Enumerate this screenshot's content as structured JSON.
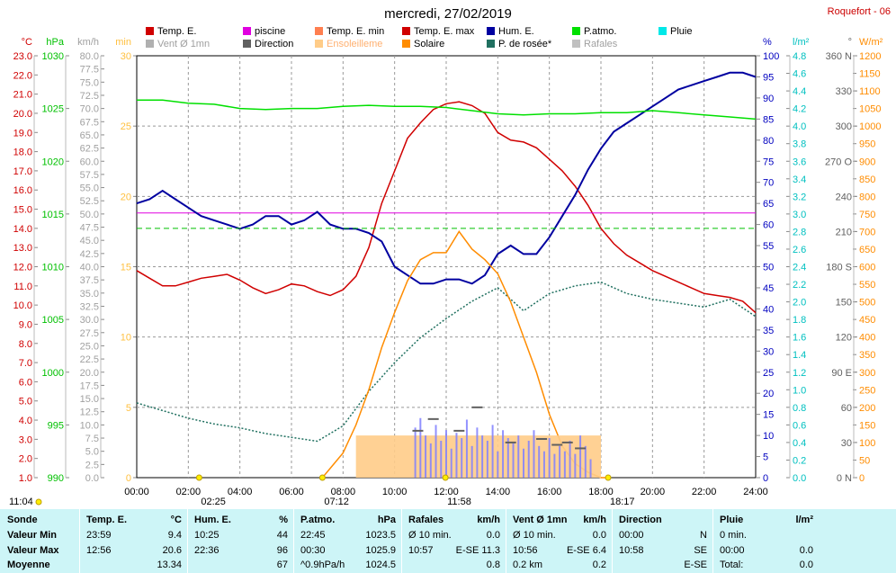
{
  "header": {
    "date_title": "mercredi, 27/02/2019",
    "station": "Roquefort - 06"
  },
  "legend": [
    {
      "label": "Temp. E.",
      "color": "#d00000",
      "text_color": "#000000"
    },
    {
      "label": "piscine",
      "color": "#e000e0",
      "text_color": "#000000"
    },
    {
      "label": "Temp. E. min",
      "color": "#ff7f50",
      "text_color": "#000000"
    },
    {
      "label": "Temp. E. max",
      "color": "#d00000",
      "text_color": "#000000"
    },
    {
      "label": "Hum. E.",
      "color": "#0000a0",
      "text_color": "#000000"
    },
    {
      "label": "P.atmo.",
      "color": "#00e000",
      "text_color": "#000000"
    },
    {
      "label": "Pluie",
      "color": "#00e8e8",
      "text_color": "#000000"
    },
    {
      "label": "Vent Ø 1mn",
      "color": "#b0b0b0",
      "text_color": "#a0a0a0"
    },
    {
      "label": "Direction",
      "color": "#606060",
      "text_color": "#000000"
    },
    {
      "label": "Ensoleilleme",
      "color": "#ffcc88",
      "text_color": "#ffb070"
    },
    {
      "label": "Solaire",
      "color": "#ff8c00",
      "text_color": "#000000"
    },
    {
      "label": "P. de rosée*",
      "color": "#207060",
      "text_color": "#000000"
    },
    {
      "label": "Rafales",
      "color": "#c0c0c0",
      "text_color": "#a0a0a0"
    }
  ],
  "chart_data": {
    "type": "line",
    "x_ticks": [
      "00:00",
      "02:00",
      "04:00",
      "06:00",
      "08:00",
      "10:00",
      "12:00",
      "14:00",
      "16:00",
      "18:00",
      "20:00",
      "22:00",
      "24:00"
    ],
    "axes": {
      "temperature_c": {
        "unit": "°C",
        "color": "#d00000",
        "ticks": [
          "23.0",
          "22.0",
          "21.0",
          "20.0",
          "19.0",
          "18.0",
          "17.0",
          "16.0",
          "15.0",
          "14.0",
          "13.0",
          "12.0",
          "11.0",
          "10.0",
          "9.0",
          "8.0",
          "7.0",
          "6.0",
          "5.0",
          "4.0",
          "3.0",
          "2.0",
          "1.0"
        ],
        "range": [
          1,
          23
        ]
      },
      "pressure_hpa": {
        "unit": "hPa",
        "color": "#00c000",
        "ticks": [
          "1030",
          "1025",
          "1020",
          "1015",
          "1010",
          "1005",
          "1000",
          "995",
          "990"
        ],
        "range": [
          990,
          1030
        ]
      },
      "wind_kmh": {
        "unit": "km/h",
        "color": "#a0a0a0",
        "ticks": [
          "80.0",
          "77.5",
          "75.0",
          "72.5",
          "70.0",
          "67.5",
          "65.0",
          "62.5",
          "60.0",
          "57.5",
          "55.0",
          "52.5",
          "50.0",
          "47.5",
          "45.0",
          "42.5",
          "40.0",
          "37.5",
          "35.0",
          "32.5",
          "30.0",
          "27.5",
          "25.0",
          "22.5",
          "20.0",
          "17.5",
          "15.0",
          "12.5",
          "10.0",
          "7.5",
          "5.0",
          "2.5",
          "0.0"
        ],
        "range": [
          0,
          80
        ]
      },
      "sunshine_min": {
        "unit": "min",
        "color": "#ffc040",
        "ticks": [
          "30",
          "25",
          "20",
          "15",
          "10",
          "5",
          "0"
        ],
        "range": [
          0,
          30
        ]
      },
      "humidity_pct": {
        "unit": "%",
        "color": "#0000c0",
        "ticks": [
          "100",
          "95",
          "90",
          "85",
          "80",
          "75",
          "70",
          "65",
          "60",
          "55",
          "50",
          "45",
          "40",
          "35",
          "30",
          "25",
          "20",
          "15",
          "10",
          "5",
          "0"
        ],
        "range": [
          0,
          100
        ]
      },
      "rain_lm2": {
        "unit": "l/m²",
        "color": "#00c0c0",
        "ticks": [
          "4.8",
          "4.6",
          "4.4",
          "4.2",
          "4.0",
          "3.8",
          "3.6",
          "3.4",
          "3.2",
          "3.0",
          "2.8",
          "2.6",
          "2.4",
          "2.2",
          "2.0",
          "1.8",
          "1.6",
          "1.4",
          "1.2",
          "1.0",
          "0.8",
          "0.6",
          "0.4",
          "0.2",
          "0.0"
        ],
        "range": [
          0,
          5
        ]
      },
      "direction_deg": {
        "unit": "°",
        "color": "#606060",
        "ticks": [
          "360 N",
          "330",
          "300",
          "270 O",
          "240",
          "210",
          "180 S",
          "150",
          "120",
          "90 E",
          "60",
          "30",
          "0 N"
        ],
        "range": [
          0,
          360
        ]
      },
      "solar_wm2": {
        "unit": "W/m²",
        "color": "#ff8c00",
        "ticks": [
          "1200",
          "1150",
          "1100",
          "1050",
          "1000",
          "950",
          "900",
          "850",
          "800",
          "750",
          "700",
          "650",
          "600",
          "550",
          "500",
          "450",
          "400",
          "350",
          "300",
          "250",
          "200",
          "150",
          "100",
          "50",
          "0"
        ],
        "range": [
          0,
          1200
        ]
      }
    },
    "series": [
      {
        "name": "Temp. E.",
        "color": "#d00000",
        "x": [
          0,
          0.5,
          1,
          1.5,
          2,
          2.5,
          3,
          3.5,
          4,
          4.5,
          5,
          5.5,
          6,
          6.5,
          7,
          7.5,
          8,
          8.5,
          9,
          9.5,
          10,
          10.5,
          11,
          11.5,
          12,
          12.5,
          13,
          13.5,
          14,
          14.5,
          15,
          15.5,
          16,
          16.5,
          17,
          17.5,
          18,
          18.5,
          19,
          19.5,
          20,
          20.5,
          21,
          21.5,
          22,
          22.5,
          23,
          23.5,
          24
        ],
        "y": [
          11.8,
          11.4,
          11.0,
          11.0,
          11.2,
          11.4,
          11.5,
          11.6,
          11.3,
          10.9,
          10.6,
          10.8,
          11.1,
          11.0,
          10.7,
          10.5,
          10.8,
          11.5,
          13.0,
          15.3,
          17.0,
          18.7,
          19.5,
          20.2,
          20.5,
          20.6,
          20.4,
          20.0,
          19.0,
          18.6,
          18.5,
          18.2,
          17.6,
          17.0,
          16.2,
          15.2,
          14.0,
          13.2,
          12.6,
          12.2,
          11.8,
          11.5,
          11.2,
          10.9,
          10.6,
          10.5,
          10.4,
          10.2,
          9.6
        ]
      },
      {
        "name": "piscine",
        "color": "#e000e0",
        "x": [
          0,
          24
        ],
        "y": [
          14.8,
          14.8
        ]
      },
      {
        "name": "Hum. E.",
        "color": "#0000a0",
        "x": [
          0,
          0.5,
          1,
          1.5,
          2,
          2.5,
          3,
          3.5,
          4,
          4.5,
          5,
          5.5,
          6,
          6.5,
          7,
          7.5,
          8,
          8.5,
          9,
          9.5,
          10,
          10.5,
          11,
          11.5,
          12,
          12.5,
          13,
          13.5,
          14,
          14.5,
          15,
          15.5,
          16,
          16.5,
          17,
          17.5,
          18,
          18.5,
          19,
          19.5,
          20,
          20.5,
          21,
          21.5,
          22,
          22.5,
          23,
          23.5,
          24
        ],
        "y": [
          65,
          66,
          68,
          66,
          64,
          62,
          61,
          60,
          59,
          60,
          62,
          62,
          60,
          61,
          63,
          60,
          59,
          59,
          58,
          56,
          50,
          48,
          46,
          46,
          47,
          47,
          46,
          48,
          53,
          55,
          53,
          53,
          57,
          62,
          67,
          73,
          78,
          82,
          84,
          86,
          88,
          90,
          92,
          93,
          94,
          95,
          96,
          96,
          95
        ]
      },
      {
        "name": "P.atmo.",
        "color": "#00e000",
        "x": [
          0,
          1,
          2,
          3,
          4,
          5,
          6,
          7,
          8,
          9,
          10,
          11,
          12,
          13,
          14,
          15,
          16,
          17,
          18,
          19,
          20,
          21,
          22,
          23,
          24
        ],
        "y": [
          1025.8,
          1025.8,
          1025.5,
          1025.4,
          1025.0,
          1024.9,
          1025.0,
          1025.0,
          1025.2,
          1025.3,
          1025.2,
          1025.2,
          1025.1,
          1024.8,
          1024.5,
          1024.4,
          1024.5,
          1024.5,
          1024.6,
          1024.6,
          1024.8,
          1024.6,
          1024.4,
          1024.2,
          1024.0
        ]
      },
      {
        "name": "P. de rosée*",
        "color": "#207060",
        "x": [
          0,
          1,
          2,
          3,
          4,
          5,
          6,
          7,
          8,
          9,
          10,
          11,
          12,
          13,
          14,
          15,
          16,
          17,
          18,
          19,
          20,
          21,
          22,
          23,
          24
        ],
        "y": [
          4.9,
          4.5,
          4.1,
          3.8,
          3.6,
          3.3,
          3.1,
          2.9,
          3.7,
          5.5,
          7.0,
          8.3,
          9.3,
          10.2,
          10.9,
          9.7,
          10.6,
          11.0,
          11.2,
          10.6,
          10.3,
          10.1,
          9.9,
          10.3,
          9.4
        ]
      },
      {
        "name": "Solaire",
        "color": "#ff8c00",
        "x": [
          7.2,
          8,
          8.5,
          9,
          9.5,
          10,
          10.5,
          11,
          11.5,
          12,
          12.5,
          13,
          13.5,
          14,
          14.5,
          15,
          15.5,
          16,
          16.5,
          17,
          17.5,
          18,
          18.3
        ],
        "y": [
          0,
          70,
          150,
          250,
          370,
          470,
          560,
          620,
          640,
          640,
          700,
          650,
          620,
          580,
          500,
          400,
          300,
          180,
          90,
          40,
          15,
          0,
          0
        ]
      },
      {
        "name": "Ensoleillement",
        "color": "#ffcc88",
        "x": [
          8.5,
          18.0
        ],
        "y": [
          3,
          3
        ]
      },
      {
        "name": "Rafales",
        "color": "#8080ff",
        "x": [
          10.8,
          11.0,
          11.2,
          11.4,
          11.6,
          11.8,
          12.0,
          12.2,
          12.4,
          12.6,
          12.8,
          13.0,
          13.2,
          13.4,
          13.6,
          13.8,
          14.0,
          14.2,
          14.4,
          14.6,
          14.8,
          15.0,
          15.2,
          15.4,
          15.6,
          15.8,
          16.0,
          16.2,
          16.4,
          16.6,
          16.8,
          17.0,
          17.2,
          17.4,
          17.6
        ],
        "y": [
          9.5,
          11.3,
          8.0,
          6.5,
          10.0,
          7.0,
          9.0,
          5.5,
          8.5,
          7.5,
          11.0,
          6.0,
          9.5,
          8.0,
          7.0,
          10.0,
          5.0,
          9.0,
          7.5,
          6.5,
          8.0,
          5.5,
          7.0,
          9.0,
          6.0,
          5.0,
          7.5,
          4.5,
          6.0,
          5.0,
          7.0,
          4.5,
          8.0,
          6.0,
          3.5
        ]
      },
      {
        "name": "Direction",
        "color": "#606060",
        "x": [
          10.9,
          11.5,
          12.5,
          13.2,
          14.5,
          15.7,
          16.3,
          16.7,
          17.2
        ],
        "y": [
          40,
          50,
          40,
          60,
          30,
          33,
          28,
          30,
          25
        ]
      }
    ],
    "sun_marks": [
      {
        "label": "02:25",
        "x": 2.42
      },
      {
        "label": "07:12",
        "x": 7.2
      },
      {
        "label": "11:58",
        "x": 11.97
      },
      {
        "label": "18:17",
        "x": 18.28
      }
    ],
    "left_time": "11:04"
  },
  "stats": {
    "cols": [
      {
        "header": "Sonde",
        "rows": [
          "Valeur Min",
          "Valeur Max",
          "Moyenne"
        ]
      },
      {
        "header": "Temp. E.",
        "unit": "°C",
        "rows": [
          [
            "23:59",
            "9.4"
          ],
          [
            "12:56",
            "20.6"
          ],
          [
            "",
            "13.34"
          ]
        ]
      },
      {
        "header": "Hum. E.",
        "unit": "%",
        "rows": [
          [
            "10:25",
            "44"
          ],
          [
            "22:36",
            "96"
          ],
          [
            "",
            "67"
          ]
        ]
      },
      {
        "header": "P.atmo.",
        "unit": "hPa",
        "rows": [
          [
            "22:45",
            "1023.5"
          ],
          [
            "00:30",
            "1025.9"
          ],
          [
            "^0.9hPa/h",
            "1024.5"
          ]
        ]
      },
      {
        "header": "Rafales",
        "unit": "km/h",
        "rows": [
          [
            "Ø 10 min.",
            "0.0"
          ],
          [
            "10:57",
            "E-SE 11.3"
          ],
          [
            "",
            "0.8"
          ]
        ]
      },
      {
        "header": "Vent Ø 1mn",
        "unit": "km/h",
        "rows": [
          [
            "Ø 10 min.",
            "0.0"
          ],
          [
            "10:56",
            "E-SE 6.4"
          ],
          [
            "0.2 km",
            "0.2"
          ]
        ]
      },
      {
        "header": "Direction",
        "unit": "",
        "rows": [
          [
            "00:00",
            "N"
          ],
          [
            "10:58",
            "SE"
          ],
          [
            "",
            "E-SE"
          ]
        ]
      },
      {
        "header": "Pluie",
        "unit": "l/m²",
        "rows": [
          [
            "0 min.",
            ""
          ],
          [
            "00:00",
            "0.0"
          ],
          [
            "Total:",
            "0.0"
          ]
        ]
      }
    ]
  }
}
